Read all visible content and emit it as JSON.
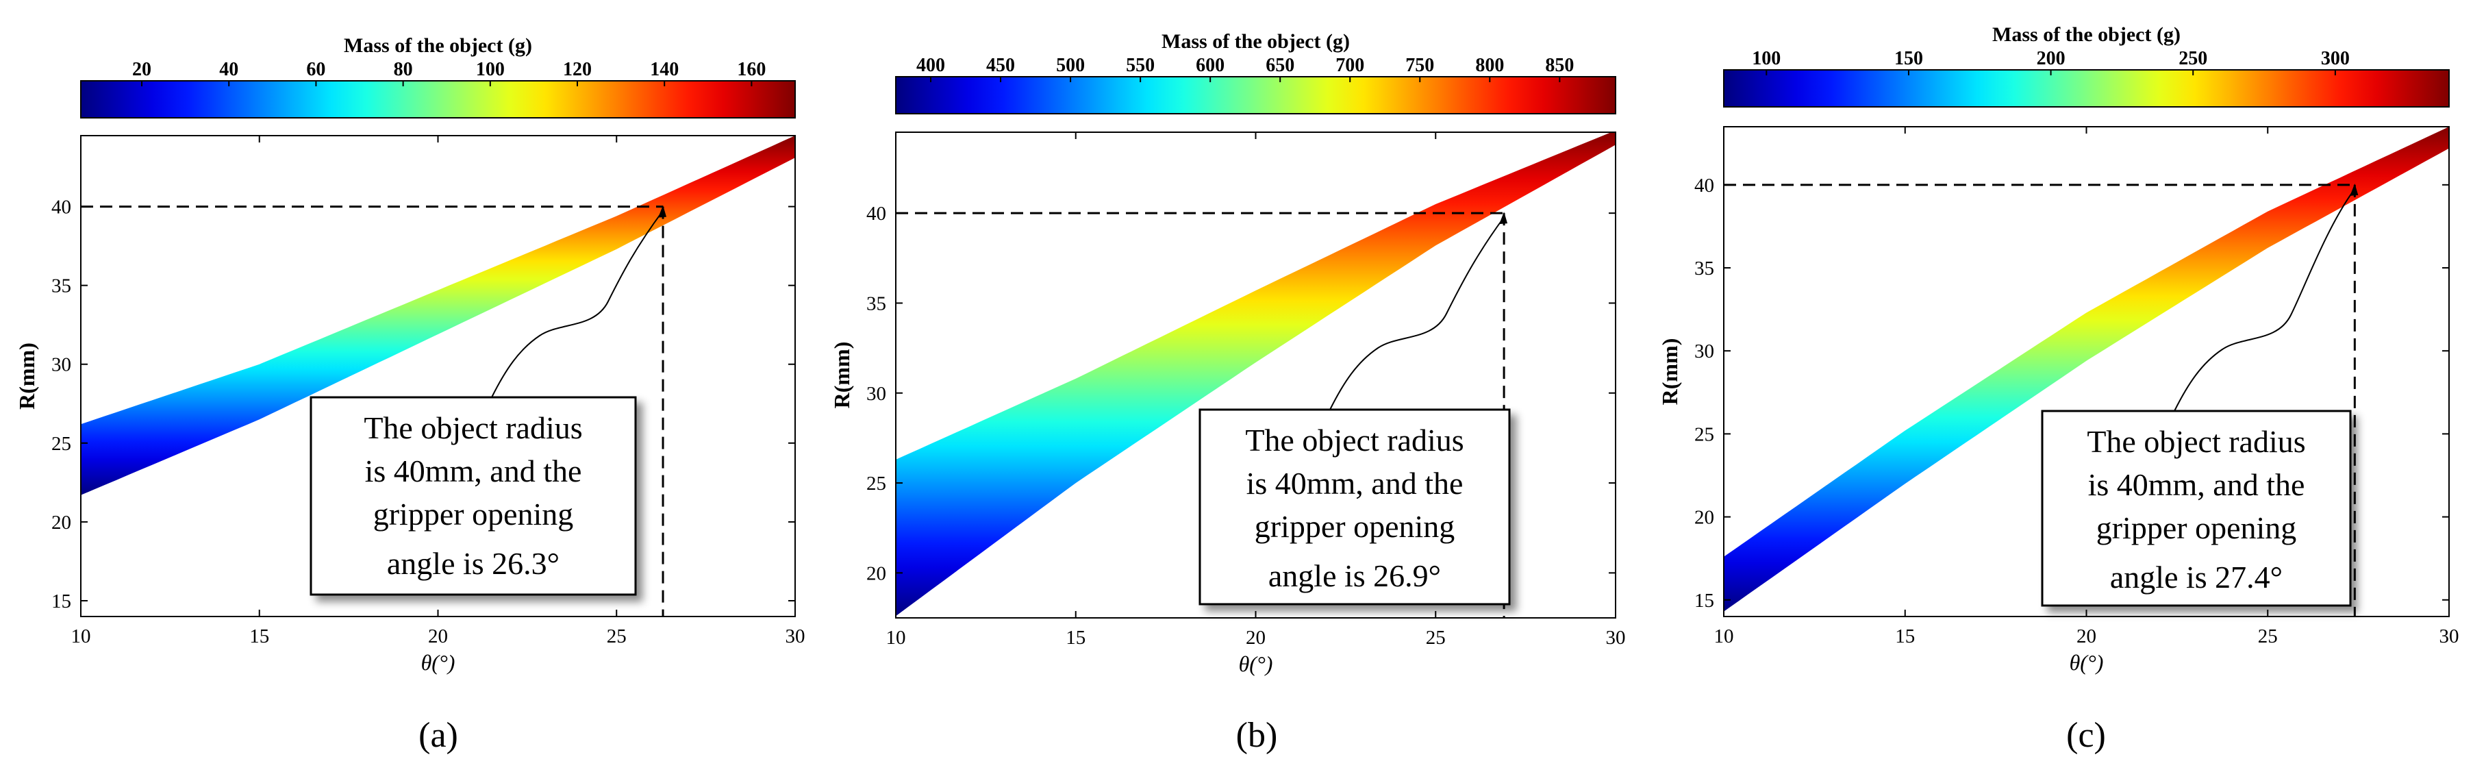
{
  "chart_data": [
    {
      "type": "area",
      "panel_label": "(a)",
      "colorbar": {
        "title": "Mass of the object (g)",
        "range": [
          6,
          170
        ],
        "ticks": [
          20,
          40,
          60,
          80,
          100,
          120,
          140,
          160
        ],
        "colormap": "jet"
      },
      "xlabel": "θ(°)",
      "ylabel": "R(mm)",
      "xlim": [
        10,
        30
      ],
      "ylim": [
        14,
        44.5
      ],
      "xticks": [
        10,
        15,
        20,
        25,
        30
      ],
      "yticks": [
        15,
        20,
        25,
        30,
        35,
        40
      ],
      "band": {
        "x": [
          10,
          15,
          20,
          25,
          30
        ],
        "lower": [
          21.7,
          26.5,
          31.9,
          37.3,
          43.1
        ],
        "upper": [
          26.2,
          30.0,
          34.7,
          39.4,
          44.5
        ]
      },
      "marker": {
        "x": 26.3,
        "y": 40
      },
      "annotation": [
        "The object radius",
        "is 40mm, and the",
        "gripper opening",
        "angle is 26.3°"
      ]
    },
    {
      "type": "area",
      "panel_label": "(b)",
      "colorbar": {
        "title": "Mass of the object (g)",
        "range": [
          375,
          890
        ],
        "ticks": [
          400,
          450,
          500,
          550,
          600,
          650,
          700,
          750,
          800,
          850
        ],
        "colormap": "jet"
      },
      "xlabel": "θ(°)",
      "ylabel": "R(mm)",
      "xlim": [
        10,
        30
      ],
      "ylim": [
        17.5,
        44.5
      ],
      "xticks": [
        10,
        15,
        20,
        25,
        30
      ],
      "yticks": [
        20,
        25,
        30,
        35,
        40
      ],
      "band": {
        "x": [
          10,
          15,
          20,
          25,
          30
        ],
        "lower": [
          17.6,
          25.0,
          31.7,
          38.2,
          43.8
        ],
        "upper": [
          26.3,
          30.8,
          35.7,
          40.5,
          44.6
        ]
      },
      "marker": {
        "x": 26.9,
        "y": 40
      },
      "annotation": [
        "The object radius",
        "is 40mm, and the",
        "gripper opening",
        "angle is 26.9°"
      ]
    },
    {
      "type": "area",
      "panel_label": "(c)",
      "colorbar": {
        "title": "Mass of the object (g)",
        "range": [
          85,
          340
        ],
        "ticks": [
          100,
          150,
          200,
          250,
          300
        ],
        "colormap": "jet"
      },
      "xlabel": "θ(°)",
      "ylabel": "R(mm)",
      "xlim": [
        10,
        30
      ],
      "ylim": [
        14,
        43.5
      ],
      "xticks": [
        10,
        15,
        20,
        25,
        30
      ],
      "yticks": [
        15,
        20,
        25,
        30,
        35,
        40
      ],
      "band": {
        "x": [
          10,
          15,
          20,
          25,
          30
        ],
        "lower": [
          14.3,
          22.0,
          29.4,
          36.2,
          42.2
        ],
        "upper": [
          17.6,
          25.2,
          32.3,
          38.4,
          43.5
        ]
      },
      "marker": {
        "x": 27.4,
        "y": 40
      },
      "annotation": [
        "The object radius",
        "is 40mm, and the",
        "gripper opening",
        "angle is 27.4°"
      ]
    }
  ]
}
